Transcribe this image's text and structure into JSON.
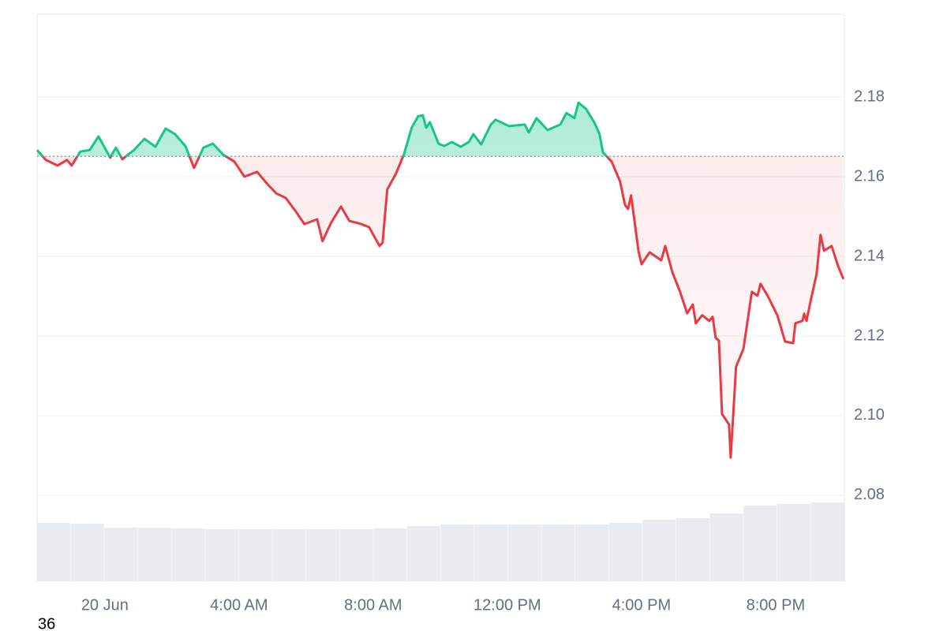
{
  "chart_data": {
    "type": "line",
    "x": [
      -2.02,
      -1.76,
      -1.41,
      -1.13,
      -0.99,
      -0.73,
      -0.45,
      -0.19,
      0.16,
      0.33,
      0.52,
      0.87,
      1.18,
      1.51,
      1.81,
      2.09,
      2.4,
      2.66,
      2.94,
      3.22,
      3.53,
      3.86,
      4.16,
      4.54,
      4.82,
      5.11,
      5.39,
      5.69,
      5.95,
      6.33,
      6.49,
      6.75,
      7.04,
      7.29,
      7.65,
      7.88,
      8.19,
      8.28,
      8.42,
      8.68,
      8.92,
      9.15,
      9.34,
      9.48,
      9.58,
      9.69,
      9.95,
      10.12,
      10.35,
      10.61,
      10.85,
      10.99,
      11.22,
      11.51,
      11.65,
      12.05,
      12.52,
      12.64,
      12.87,
      13.2,
      13.58,
      13.76,
      14.0,
      14.12,
      14.35,
      14.59,
      14.75,
      14.85,
      15.11,
      15.36,
      15.51,
      15.6,
      15.69,
      15.91,
      16.0,
      16.24,
      16.59,
      16.71,
      16.92,
      17.15,
      17.36,
      17.53,
      17.62,
      17.81,
      18.02,
      18.12,
      18.21,
      18.31,
      18.4,
      18.61,
      18.66,
      18.82,
      19.04,
      19.29,
      19.46,
      19.55,
      19.76,
      20.05,
      20.28,
      20.52,
      20.59,
      20.8,
      20.85,
      20.92,
      21.04,
      21.22,
      21.34,
      21.44,
      21.67,
      21.86,
      22.02
    ],
    "values": [
      2.1667,
      2.1642,
      2.1628,
      2.1642,
      2.1628,
      2.1663,
      2.1667,
      2.1701,
      2.1648,
      2.1673,
      2.1644,
      2.1667,
      2.1695,
      2.1675,
      2.1721,
      2.1707,
      2.1677,
      2.1622,
      2.1673,
      2.1683,
      2.1655,
      2.1638,
      2.16,
      2.1612,
      2.1584,
      2.1558,
      2.1547,
      2.1513,
      2.1481,
      2.1493,
      2.1438,
      2.1485,
      2.1525,
      2.1489,
      2.1481,
      2.1473,
      2.1426,
      2.1434,
      2.1568,
      2.1608,
      2.1657,
      2.1723,
      2.1752,
      2.1754,
      2.1723,
      2.1737,
      2.1683,
      2.1677,
      2.1687,
      2.1675,
      2.1687,
      2.1707,
      2.1681,
      2.1731,
      2.1743,
      2.1727,
      2.1731,
      2.1711,
      2.1747,
      2.1717,
      2.1731,
      2.176,
      2.1747,
      2.1786,
      2.177,
      2.1737,
      2.1707,
      2.1661,
      2.1638,
      2.1588,
      2.1529,
      2.1519,
      2.1553,
      2.1414,
      2.138,
      2.141,
      2.139,
      2.1426,
      2.136,
      2.1311,
      2.1257,
      2.1279,
      2.1232,
      2.1252,
      2.1238,
      2.1248,
      2.1196,
      2.1188,
      2.1004,
      2.0978,
      2.0895,
      2.1123,
      2.1168,
      2.1311,
      2.1301,
      2.1331,
      2.1301,
      2.1252,
      2.1186,
      2.1182,
      2.1232,
      2.1238,
      2.1256,
      2.1238,
      2.1287,
      2.1355,
      2.1454,
      2.1414,
      2.1426,
      2.1376,
      2.1343
    ],
    "baseline": 2.1651,
    "up_color": "#16c784",
    "down_color": "#ea3943",
    "xlim": [
      -2.02,
      22.05
    ],
    "ylim": [
      2.0584,
      2.2008
    ],
    "xticks": [
      {
        "value": 0,
        "label": "20 Jun"
      },
      {
        "value": 4,
        "label": "4:00 AM"
      },
      {
        "value": 8,
        "label": "8:00 AM"
      },
      {
        "value": 12,
        "label": "12:00 PM"
      },
      {
        "value": 16,
        "label": "4:00 PM"
      },
      {
        "value": 20,
        "label": "8:00 PM"
      }
    ],
    "yticks": [
      2.08,
      {
        "value": 2.1,
        "label": "2.10"
      },
      2.12,
      2.14,
      2.16,
      2.18
    ],
    "grid": true,
    "volume": {
      "color": "#e8ebef",
      "values": [
        74,
        73,
        68,
        68,
        67,
        66,
        66,
        66,
        66,
        66,
        67,
        70,
        72,
        72,
        72,
        72,
        72,
        74,
        78,
        80,
        86,
        96,
        98,
        100
      ]
    }
  },
  "corner_label": "36"
}
